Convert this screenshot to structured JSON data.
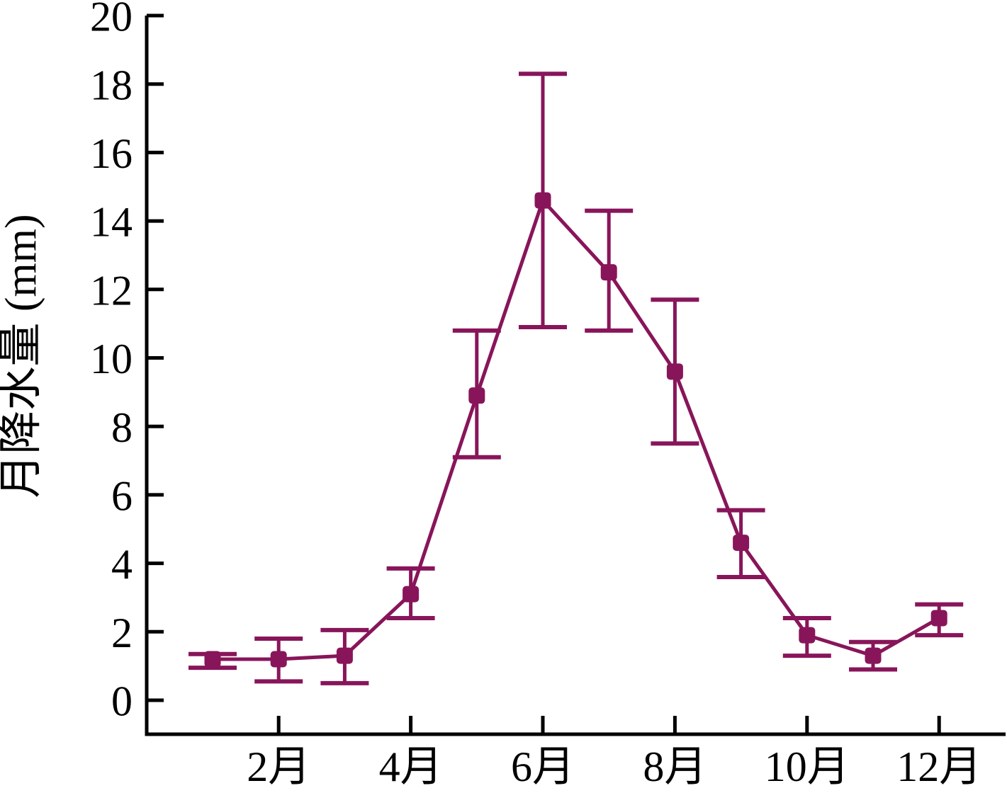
{
  "chart_data": {
    "type": "line",
    "title": "",
    "xlabel": "",
    "ylabel": "月降水量 (mm)",
    "ylim": [
      0,
      20
    ],
    "ytick_step": 2,
    "grid": false,
    "legend": "none",
    "series_color": "#88155A",
    "axis_color": "#000000",
    "marker": "square",
    "months": [
      1,
      2,
      3,
      4,
      5,
      6,
      7,
      8,
      9,
      10,
      11,
      12
    ],
    "xtick_labels": [
      {
        "month": 2,
        "label": "2月"
      },
      {
        "month": 4,
        "label": "4月"
      },
      {
        "month": 6,
        "label": "6月"
      },
      {
        "month": 8,
        "label": "8月"
      },
      {
        "month": 10,
        "label": "10月"
      },
      {
        "month": 12,
        "label": "12月"
      }
    ],
    "y_tick_values": [
      0,
      2,
      4,
      6,
      8,
      10,
      12,
      14,
      16,
      18,
      20
    ],
    "series": [
      {
        "name": "月降水量",
        "values": [
          1.2,
          1.2,
          1.3,
          3.1,
          8.9,
          14.6,
          12.5,
          9.6,
          4.6,
          1.9,
          1.3,
          2.4
        ],
        "error_lower": [
          0.95,
          0.55,
          0.5,
          2.4,
          7.1,
          10.9,
          10.8,
          7.5,
          3.6,
          1.3,
          0.9,
          1.9
        ],
        "error_upper": [
          1.35,
          1.8,
          2.05,
          3.85,
          10.8,
          18.3,
          14.3,
          11.7,
          5.55,
          2.4,
          1.7,
          2.8
        ]
      }
    ]
  }
}
